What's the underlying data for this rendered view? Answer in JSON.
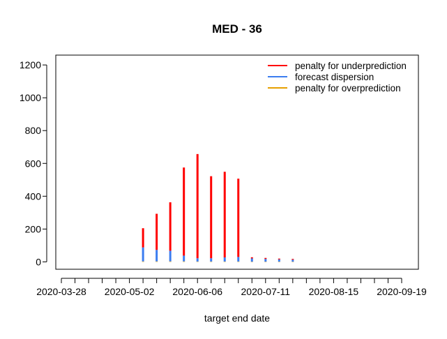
{
  "chart_data": {
    "type": "bar",
    "title": "MED - 36",
    "xlabel": "target end date",
    "ylabel": "",
    "ylim": [
      -45,
      1260
    ],
    "y_ticks": [
      0,
      200,
      400,
      600,
      800,
      1000,
      1200
    ],
    "x_tick_labels": [
      "2020-03-28",
      "2020-05-02",
      "2020-06-06",
      "2020-07-11",
      "2020-08-15",
      "2020-09-19"
    ],
    "legend_position": "top-right",
    "grid": false,
    "stacked": true,
    "x": [
      "2020-05-09",
      "2020-05-16",
      "2020-05-23",
      "2020-05-30",
      "2020-06-06",
      "2020-06-13",
      "2020-06-20",
      "2020-06-27",
      "2020-07-04",
      "2020-07-11",
      "2020-07-18",
      "2020-07-25"
    ],
    "series": [
      {
        "name": "penalty for overprediction",
        "color": "#E69F00",
        "values": [
          3,
          3,
          3,
          3,
          2,
          2,
          2,
          2,
          1,
          1,
          1,
          1
        ]
      },
      {
        "name": "forecast dispersion",
        "color": "#3B7DF0",
        "values": [
          85,
          70,
          65,
          35,
          20,
          20,
          25,
          28,
          20,
          17,
          14,
          12
        ]
      },
      {
        "name": "penalty for underprediction",
        "color": "#FF0000",
        "values": [
          117,
          220,
          295,
          537,
          635,
          500,
          522,
          477,
          7,
          6,
          5,
          5
        ]
      }
    ]
  }
}
